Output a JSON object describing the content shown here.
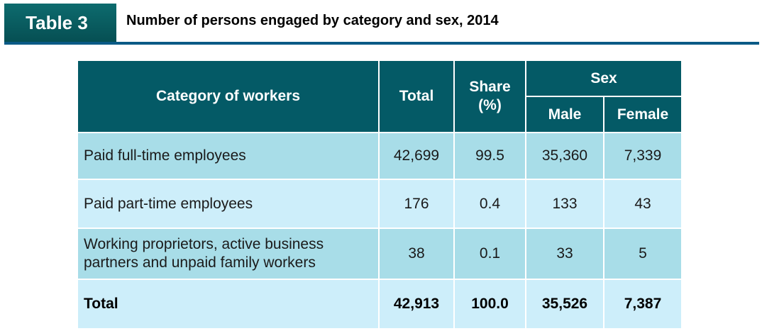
{
  "header": {
    "tag": "Table 3",
    "title": "Number of persons engaged by category and sex, 2014"
  },
  "table": {
    "columns": {
      "category": "Category of workers",
      "total": "Total",
      "share": "Share\n(%)",
      "sex": "Sex",
      "male": "Male",
      "female": "Female"
    },
    "rows": [
      {
        "category": "Paid full-time employees",
        "total": "42,699",
        "share": "99.5",
        "male": "35,360",
        "female": "7,339"
      },
      {
        "category": "Paid part-time employees",
        "total": "176",
        "share": "0.4",
        "male": "133",
        "female": "43"
      },
      {
        "category": "Working proprietors, active business partners and unpaid family workers",
        "total": "38",
        "share": "0.1",
        "male": "33",
        "female": "5"
      }
    ],
    "total_row": {
      "category": "Total",
      "total": "42,913",
      "share": "100.0",
      "male": "35,526",
      "female": "7,387"
    }
  }
}
